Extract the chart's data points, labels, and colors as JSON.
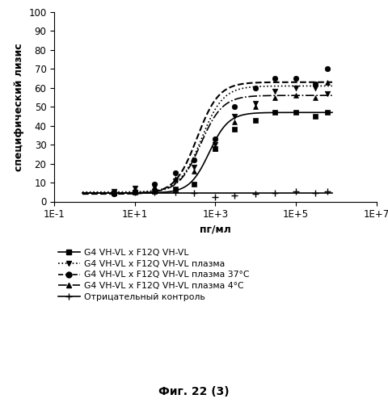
{
  "xlabel": "пг/мл",
  "ylabel": "специфический лизис",
  "ylim": [
    0,
    100
  ],
  "yticks": [
    0,
    10,
    20,
    30,
    40,
    50,
    60,
    70,
    80,
    90,
    100
  ],
  "xtick_vals": [
    0.1,
    10,
    1000,
    100000,
    10000000
  ],
  "xtick_labels": [
    "1E-1",
    "1E+1",
    "1E+3",
    "1E+5",
    "1E+7"
  ],
  "caption": "Фиг. 22 (3)",
  "series": [
    {
      "label": "G4 VH-VL x F12Q VH-VL",
      "linestyle": "-",
      "marker": "s",
      "color": "#000000",
      "x": [
        3,
        10,
        30,
        100,
        300,
        1000,
        3000,
        10000,
        30000,
        100000,
        300000,
        600000
      ],
      "y": [
        4.5,
        5.0,
        5.5,
        6.5,
        9.0,
        28,
        38,
        43,
        47,
        47,
        45,
        47
      ],
      "ymin": 4.5,
      "ymax": 47,
      "ec50": 700,
      "hill": 1.8
    },
    {
      "label": "G4 VH-VL x F12Q VH-VL плазма",
      "linestyle": ":",
      "marker": "v",
      "color": "#000000",
      "x": [
        3,
        10,
        30,
        100,
        300,
        1000,
        3000,
        10000,
        30000,
        100000,
        300000,
        600000
      ],
      "y": [
        5.5,
        7.0,
        8.5,
        11,
        18,
        30,
        45,
        52,
        58,
        60,
        60,
        57
      ],
      "ymin": 5.0,
      "ymax": 61,
      "ec50": 450,
      "hill": 1.6
    },
    {
      "label": "G4 VH-VL x F12Q VH-VL плазма 37°C",
      "linestyle": "--",
      "marker": "o",
      "color": "#000000",
      "x": [
        3,
        10,
        30,
        100,
        300,
        1000,
        3000,
        10000,
        30000,
        100000,
        300000,
        600000
      ],
      "y": [
        4.0,
        5.5,
        9.0,
        15,
        22,
        33,
        50,
        60,
        65,
        65,
        62,
        70
      ],
      "ymin": 4.0,
      "ymax": 63,
      "ec50": 350,
      "hill": 1.6
    },
    {
      "label": "G4 VH-VL x F12Q VH-VL плазма 4°C",
      "linestyle": "-.",
      "marker": "^",
      "color": "#000000",
      "x": [
        3,
        10,
        30,
        100,
        300,
        1000,
        3000,
        10000,
        30000,
        100000,
        300000,
        600000
      ],
      "y": [
        4.5,
        6.0,
        8.0,
        12,
        16,
        28,
        42,
        50,
        55,
        56,
        55,
        63
      ],
      "ymin": 4.5,
      "ymax": 56,
      "ec50": 430,
      "hill": 1.6
    },
    {
      "label": "Отрицательный контроль",
      "linestyle": "-",
      "marker": "+",
      "color": "#000000",
      "x": [
        3,
        10,
        30,
        100,
        300,
        1000,
        3000,
        10000,
        30000,
        100000,
        300000,
        600000
      ],
      "y": [
        4.5,
        5.0,
        5.0,
        5.0,
        4.5,
        2.5,
        3.0,
        4.0,
        4.5,
        5.5,
        4.5,
        5.5
      ],
      "flat": true,
      "yflat": 4.5
    }
  ],
  "legend_labels": [
    "G4 VH-VL x F12Q VH-VL",
    "G4 VH-VL x F12Q VH-VL плазма",
    "G4 VH-VL x F12Q VH-VL плазма 37°C",
    "G4 VH-VL x F12Q VH-VL плазма 4°C",
    "Отрицательный контроль"
  ]
}
